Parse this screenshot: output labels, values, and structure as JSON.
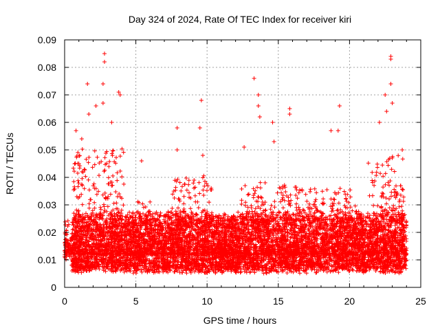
{
  "chart_data": {
    "type": "scatter",
    "title": "Day 324 of 2024, Rate Of TEC Index for receiver kiri",
    "xlabel": "GPS time / hours",
    "ylabel": "ROTI / TECUs",
    "xlim": [
      0,
      25
    ],
    "ylim": [
      0,
      0.09
    ],
    "x_ticks": [
      "0",
      "5",
      "10",
      "15",
      "20",
      "25"
    ],
    "y_ticks": [
      "0",
      "0.01",
      "0.02",
      "0.03",
      "0.04",
      "0.05",
      "0.06",
      "0.07",
      "0.08",
      "0.09"
    ],
    "grid": true,
    "marker": "+",
    "marker_color": "#ff0000",
    "x_range_of_data": [
      0,
      24
    ],
    "baseline_band": [
      0.005,
      0.025
    ],
    "highlighted_points": [
      {
        "x": 2.8,
        "y": 0.085
      },
      {
        "x": 2.8,
        "y": 0.082
      },
      {
        "x": 1.6,
        "y": 0.074
      },
      {
        "x": 2.7,
        "y": 0.074
      },
      {
        "x": 3.8,
        "y": 0.071
      },
      {
        "x": 3.9,
        "y": 0.07
      },
      {
        "x": 2.2,
        "y": 0.066
      },
      {
        "x": 2.7,
        "y": 0.067
      },
      {
        "x": 1.7,
        "y": 0.063
      },
      {
        "x": 3.3,
        "y": 0.06
      },
      {
        "x": 0.8,
        "y": 0.057
      },
      {
        "x": 1.2,
        "y": 0.054
      },
      {
        "x": 5.4,
        "y": 0.046
      },
      {
        "x": 7.9,
        "y": 0.058
      },
      {
        "x": 7.9,
        "y": 0.05
      },
      {
        "x": 9.6,
        "y": 0.068
      },
      {
        "x": 9.5,
        "y": 0.058
      },
      {
        "x": 9.7,
        "y": 0.048
      },
      {
        "x": 12.6,
        "y": 0.051
      },
      {
        "x": 13.3,
        "y": 0.076
      },
      {
        "x": 13.6,
        "y": 0.07
      },
      {
        "x": 13.6,
        "y": 0.066
      },
      {
        "x": 13.7,
        "y": 0.062
      },
      {
        "x": 14.6,
        "y": 0.06
      },
      {
        "x": 14.7,
        "y": 0.053
      },
      {
        "x": 15.8,
        "y": 0.065
      },
      {
        "x": 15.8,
        "y": 0.063
      },
      {
        "x": 18.7,
        "y": 0.057
      },
      {
        "x": 19.3,
        "y": 0.066
      },
      {
        "x": 19.2,
        "y": 0.057
      },
      {
        "x": 22.1,
        "y": 0.06
      },
      {
        "x": 22.5,
        "y": 0.07
      },
      {
        "x": 22.6,
        "y": 0.064
      },
      {
        "x": 22.9,
        "y": 0.084
      },
      {
        "x": 22.9,
        "y": 0.083
      },
      {
        "x": 22.9,
        "y": 0.074
      },
      {
        "x": 23.0,
        "y": 0.067
      },
      {
        "x": 23.7,
        "y": 0.05
      }
    ]
  }
}
